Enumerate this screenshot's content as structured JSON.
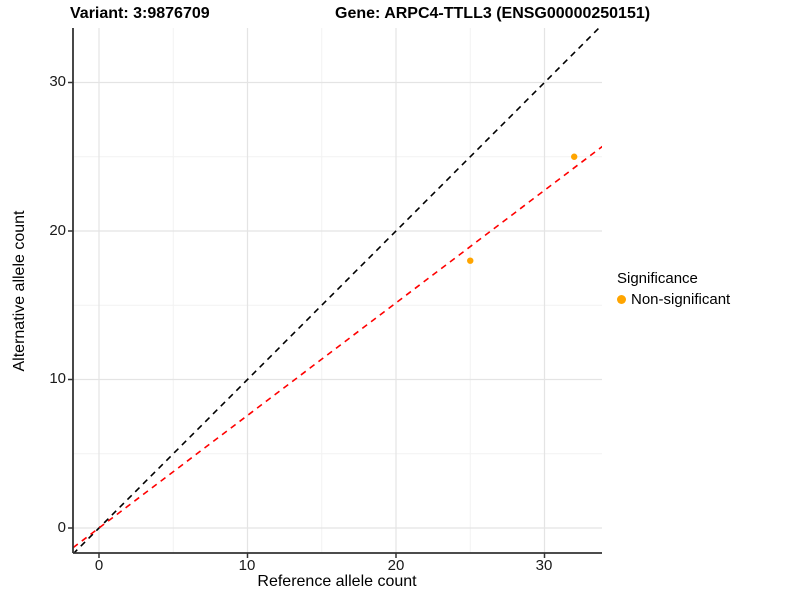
{
  "titles": {
    "variant": "Variant: 3:9876709",
    "gene": "Gene: ARPC4-TTLL3 (ENSG00000250151)"
  },
  "chart_data": {
    "type": "scatter",
    "xlabel": "Reference allele count",
    "ylabel": "Alternative allele count",
    "x_ticks": [
      0,
      10,
      20,
      30
    ],
    "y_ticks": [
      0,
      10,
      20,
      30
    ],
    "xlim": [
      -1.75,
      33.9
    ],
    "ylim": [
      -1.68,
      33.7
    ],
    "grid": "major+minor, light gray on white",
    "points": [
      {
        "x": 25,
        "y": 18,
        "series": "Non-significant"
      },
      {
        "x": 32,
        "y": 25,
        "series": "Non-significant"
      }
    ],
    "point_color": "#FFA500",
    "lines": [
      {
        "name": "identity-line",
        "slope": 1.0,
        "intercept": 0,
        "color": "#000000",
        "style": "dashed"
      },
      {
        "name": "fit-line",
        "slope": 0.758,
        "intercept": 0,
        "color": "#FF0000",
        "style": "dashed"
      }
    ],
    "legend": {
      "title": "Significance",
      "position": "right",
      "items": [
        {
          "label": "Non-significant",
          "color": "#FFA500"
        }
      ]
    },
    "colors": {
      "major_grid": "#E4E4E4",
      "minor_grid": "#F2F2F2",
      "axis_line": "#333333"
    }
  }
}
